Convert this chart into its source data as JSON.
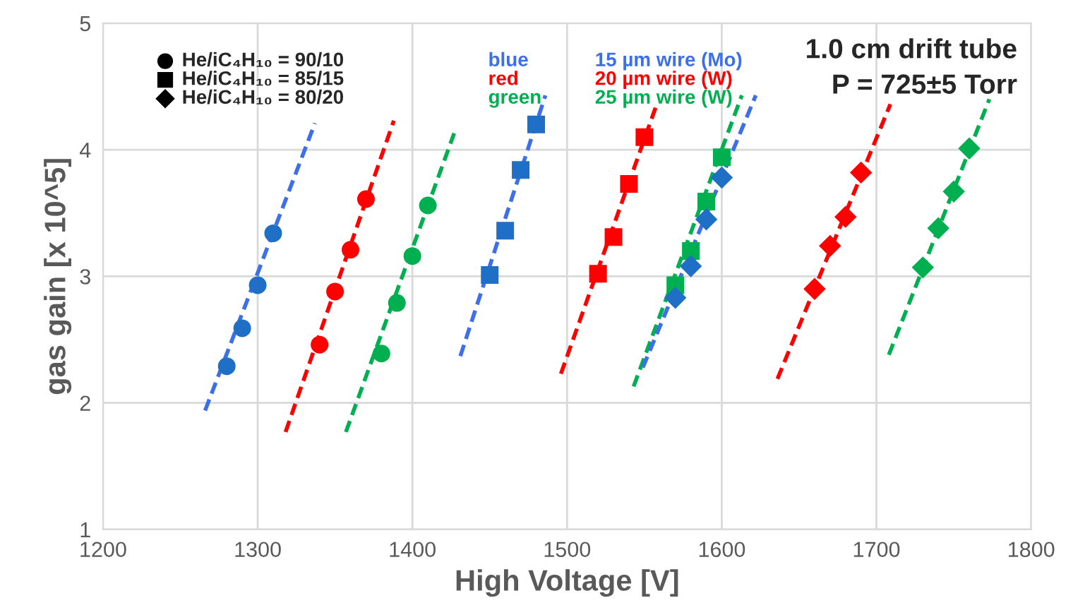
{
  "chart_data": {
    "type": "scatter",
    "xlabel": "High Voltage [V]",
    "ylabel": "gas gain [x 10^5]",
    "xlim": [
      1200,
      1800
    ],
    "xticks": [
      1200,
      1300,
      1400,
      1500,
      1600,
      1700,
      1800
    ],
    "ylim": [
      1,
      5
    ],
    "yticks": [
      1,
      2,
      3,
      4,
      5
    ],
    "grid": true,
    "legend": false,
    "series": [
      {
        "marker": "circle",
        "color": "#1f6fc6",
        "x": [
          1280,
          1290,
          1300,
          1310
        ],
        "values": [
          2.29,
          2.59,
          2.93,
          3.34
        ]
      },
      {
        "marker": "circle",
        "color": "#ff0000",
        "x": [
          1340,
          1350,
          1360,
          1370
        ],
        "values": [
          2.46,
          2.88,
          3.21,
          3.61
        ]
      },
      {
        "marker": "circle",
        "color": "#00b050",
        "x": [
          1380,
          1390,
          1400,
          1410
        ],
        "values": [
          2.39,
          2.79,
          3.16,
          3.56
        ]
      },
      {
        "marker": "square",
        "color": "#1f6fc6",
        "x": [
          1450,
          1460,
          1470,
          1480
        ],
        "values": [
          3.01,
          3.36,
          3.84,
          4.2
        ]
      },
      {
        "marker": "square",
        "color": "#ff0000",
        "x": [
          1520,
          1530,
          1540,
          1550
        ],
        "values": [
          3.02,
          3.31,
          3.73,
          4.1
        ]
      },
      {
        "marker": "square",
        "color": "#00b050",
        "x": [
          1570,
          1580,
          1590,
          1600
        ],
        "values": [
          2.93,
          3.2,
          3.59,
          3.94
        ]
      },
      {
        "marker": "diamond",
        "color": "#1f6fc6",
        "x": [
          1570,
          1580,
          1590,
          1600
        ],
        "values": [
          2.83,
          3.08,
          3.45,
          3.78
        ]
      },
      {
        "marker": "diamond",
        "color": "#ff0000",
        "x": [
          1660,
          1670,
          1680,
          1690
        ],
        "values": [
          2.9,
          3.24,
          3.47,
          3.82
        ]
      },
      {
        "marker": "diamond",
        "color": "#00b050",
        "x": [
          1730,
          1740,
          1750,
          1760
        ],
        "values": [
          3.07,
          3.38,
          3.67,
          4.01
        ]
      },
      {
        "type": "line",
        "line_style": "dashed",
        "color": "#3d6fe8",
        "x": [
          1266,
          1337
        ],
        "values": [
          1.94,
          4.21
        ]
      },
      {
        "type": "line",
        "line_style": "dashed",
        "color": "#ff0000",
        "x": [
          1318,
          1388
        ],
        "values": [
          1.77,
          4.23
        ]
      },
      {
        "type": "line",
        "line_style": "dashed",
        "color": "#00b050",
        "x": [
          1357,
          1427
        ],
        "values": [
          1.77,
          4.13
        ]
      },
      {
        "type": "line",
        "line_style": "dashed",
        "color": "#3d6fe8",
        "x": [
          1431,
          1486
        ],
        "values": [
          2.37,
          4.43
        ]
      },
      {
        "type": "line",
        "line_style": "dashed",
        "color": "#ff0000",
        "x": [
          1496,
          1558
        ],
        "values": [
          2.23,
          4.36
        ]
      },
      {
        "type": "line",
        "line_style": "dashed",
        "color": "#00b050",
        "x": [
          1543,
          1613
        ],
        "values": [
          2.13,
          4.43
        ]
      },
      {
        "type": "line",
        "line_style": "dashed",
        "color": "#3d6fe8",
        "x": [
          1549,
          1622
        ],
        "values": [
          2.28,
          4.43
        ]
      },
      {
        "type": "line",
        "line_style": "dashed",
        "color": "#ff0000",
        "x": [
          1636,
          1709
        ],
        "values": [
          2.19,
          4.36
        ]
      },
      {
        "type": "line",
        "line_style": "dashed",
        "color": "#00b050",
        "x": [
          1708,
          1773
        ],
        "values": [
          2.38,
          4.4
        ]
      }
    ],
    "annotations": [
      "He/iC₄H₁₀ = 90/10",
      "He/iC₄H₁₀ = 85/15",
      "He/iC₄H₁₀ = 80/20",
      "blue",
      "red",
      "green",
      "15 µm wire (Mo)",
      "20 µm wire (W)",
      "25 µm wire (W)",
      "1.0 cm drift tube",
      "P = 725±5 Torr"
    ]
  }
}
